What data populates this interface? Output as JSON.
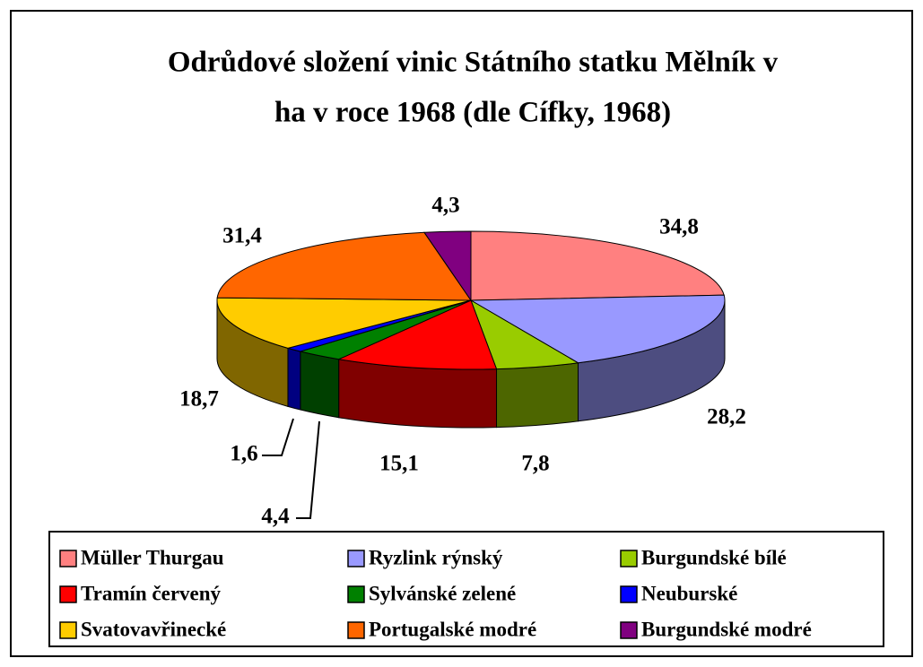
{
  "chart_data": {
    "type": "pie3d",
    "title": [
      "Odrůdové složení vinic Státního statku Mělník v",
      "ha v roce 1968 (dle Cífky, 1968)"
    ],
    "categories": [
      "Müller Thurgau",
      "Ryzlink rýnský",
      "Burgundské bílé",
      "Tramín červený",
      "Sylvánské zelené",
      "Neuburské",
      "Svatovavřinecké",
      "Portugalské modré",
      "Burgundské modré"
    ],
    "values": [
      34.8,
      28.2,
      7.8,
      15.1,
      4.4,
      1.6,
      18.7,
      31.4,
      4.3
    ],
    "value_labels": [
      "34,8",
      "28,2",
      "7,8",
      "15,1",
      "4,4",
      "1,6",
      "18,7",
      "31,4",
      "4,3"
    ],
    "colors": [
      "#ff8080",
      "#9999ff",
      "#99cc00",
      "#ff0000",
      "#008000",
      "#0000ff",
      "#ffcc00",
      "#ff6600",
      "#800080"
    ],
    "legend": "bottom"
  }
}
